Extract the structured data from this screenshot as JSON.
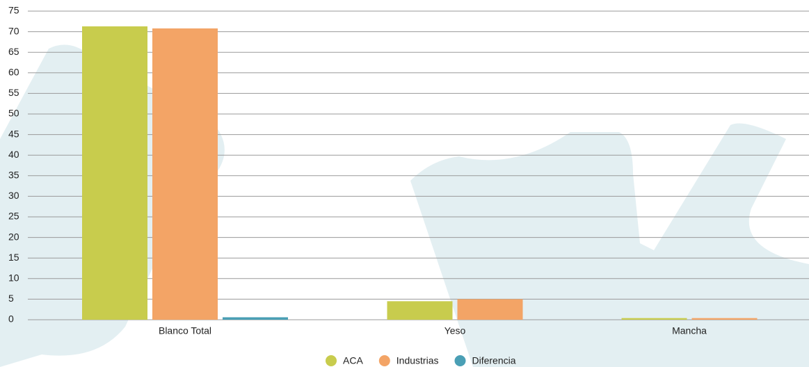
{
  "chart_data": {
    "type": "bar",
    "categories": [
      "Blanco Total",
      "Yeso",
      "Mancha"
    ],
    "series": [
      {
        "name": "ACA",
        "color": "#c8cc4d",
        "values": [
          71.3,
          4.5,
          0.4
        ]
      },
      {
        "name": "Industrias",
        "color": "#f3a466",
        "values": [
          70.8,
          5,
          0.4
        ]
      },
      {
        "name": "Diferencia",
        "color": "#4a9fb5",
        "values": [
          0.6,
          null,
          null
        ]
      }
    ],
    "ylim": [
      0,
      75
    ],
    "yticks": [
      0,
      5,
      10,
      15,
      20,
      25,
      30,
      35,
      40,
      45,
      50,
      55,
      60,
      65,
      70,
      75
    ],
    "grid": true,
    "legend": "bottom"
  }
}
